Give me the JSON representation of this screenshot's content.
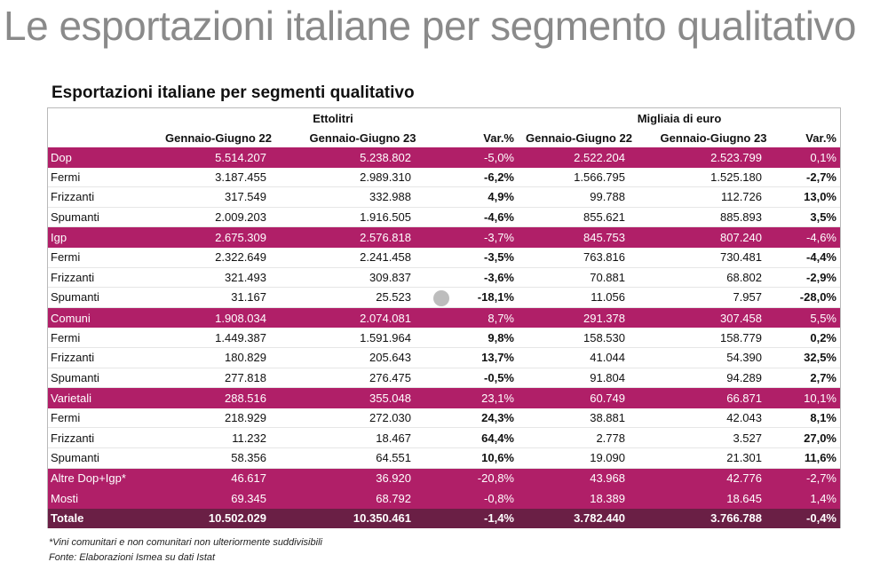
{
  "slide_title": "Le esportazioni italiane per segmento qualitativo",
  "table_title": "Esportazioni italiane per segmenti qualitativo",
  "header": {
    "group1": "Ettolitri",
    "group2": "Migliaia di euro",
    "columns": [
      "",
      "Gennaio-Giugno 22",
      "Gennaio-Giugno 23",
      "Var.%",
      "Gennaio-Giugno 22",
      "Gennaio-Giugno 23",
      "Var.%"
    ]
  },
  "rows": [
    {
      "type": "cat",
      "cells": [
        "Dop",
        "5.514.207",
        "5.238.802",
        "-5,0%",
        "2.522.204",
        "2.523.799",
        "0,1%"
      ]
    },
    {
      "type": "sub",
      "cells": [
        "Fermi",
        "3.187.455",
        "2.989.310",
        "-6,2%",
        "1.566.795",
        "1.525.180",
        "-2,7%"
      ]
    },
    {
      "type": "sub",
      "cells": [
        "Frizzanti",
        "317.549",
        "332.988",
        "4,9%",
        "99.788",
        "112.726",
        "13,0%"
      ]
    },
    {
      "type": "sub",
      "cells": [
        "Spumanti",
        "2.009.203",
        "1.916.505",
        "-4,6%",
        "855.621",
        "885.893",
        "3,5%"
      ]
    },
    {
      "type": "cat",
      "cells": [
        "Igp",
        "2.675.309",
        "2.576.818",
        "-3,7%",
        "845.753",
        "807.240",
        "-4,6%"
      ]
    },
    {
      "type": "sub",
      "cells": [
        "Fermi",
        "2.322.649",
        "2.241.458",
        "-3,5%",
        "763.816",
        "730.481",
        "-4,4%"
      ]
    },
    {
      "type": "sub",
      "cells": [
        "Frizzanti",
        "321.493",
        "309.837",
        "-3,6%",
        "70.881",
        "68.802",
        "-2,9%"
      ]
    },
    {
      "type": "sub",
      "cells": [
        "Spumanti",
        "31.167",
        "25.523",
        "-18,1%",
        "11.056",
        "7.957",
        "-28,0%"
      ]
    },
    {
      "type": "cat",
      "cells": [
        "Comuni",
        "1.908.034",
        "2.074.081",
        "8,7%",
        "291.378",
        "307.458",
        "5,5%"
      ]
    },
    {
      "type": "sub",
      "cells": [
        "Fermi",
        "1.449.387",
        "1.591.964",
        "9,8%",
        "158.530",
        "158.779",
        "0,2%"
      ]
    },
    {
      "type": "sub",
      "cells": [
        "Frizzanti",
        "180.829",
        "205.643",
        "13,7%",
        "41.044",
        "54.390",
        "32,5%"
      ]
    },
    {
      "type": "sub",
      "cells": [
        "Spumanti",
        "277.818",
        "276.475",
        "-0,5%",
        "91.804",
        "94.289",
        "2,7%"
      ]
    },
    {
      "type": "cat",
      "cells": [
        "Varietali",
        "288.516",
        "355.048",
        "23,1%",
        "60.749",
        "66.871",
        "10,1%"
      ]
    },
    {
      "type": "sub",
      "cells": [
        "Fermi",
        "218.929",
        "272.030",
        "24,3%",
        "38.881",
        "42.043",
        "8,1%"
      ]
    },
    {
      "type": "sub",
      "cells": [
        "Frizzanti",
        "11.232",
        "18.467",
        "64,4%",
        "2.778",
        "3.527",
        "27,0%"
      ]
    },
    {
      "type": "sub",
      "cells": [
        "Spumanti",
        "58.356",
        "64.551",
        "10,6%",
        "19.090",
        "21.301",
        "11,6%"
      ]
    },
    {
      "type": "cat",
      "cells": [
        "Altre Dop+Igp*",
        "46.617",
        "36.920",
        "-20,8%",
        "43.968",
        "42.776",
        "-2,7%"
      ]
    },
    {
      "type": "cat",
      "cells": [
        "Mosti",
        "69.345",
        "68.792",
        "-0,8%",
        "18.389",
        "18.645",
        "1,4%"
      ]
    },
    {
      "type": "total",
      "cells": [
        "Totale",
        "10.502.029",
        "10.350.461",
        "-1,4%",
        "3.782.440",
        "3.766.788",
        "-0,4%"
      ]
    }
  ],
  "footnotes": [
    "*Vini comunitari e non comunitari non ulteriormente suddivisibili",
    "Fonte: Elaborazioni Ismea su dati Istat"
  ],
  "colors": {
    "category_row": "#b01f68",
    "total_row": "#6a1f45",
    "title_gray": "#8a8a8a"
  }
}
